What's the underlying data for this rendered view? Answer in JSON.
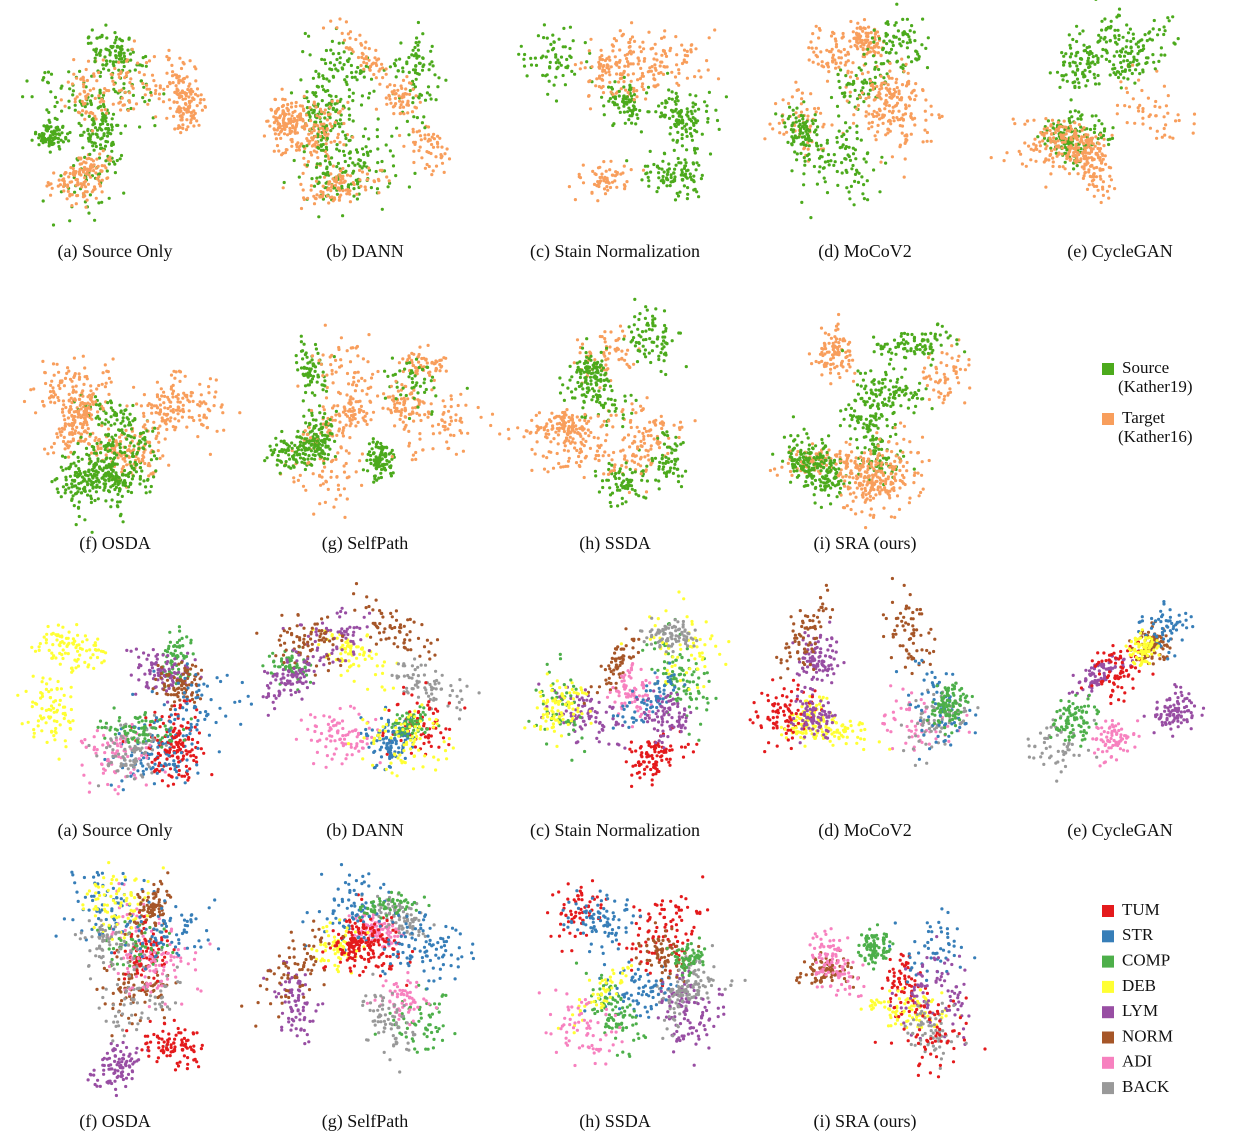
{
  "figures": [
    {
      "captions": [
        "(a) Source Only",
        "(b) DANN",
        "(c) Stain Normalization",
        "(d) MoCoV2",
        "(e) CycleGAN",
        "(f) OSDA",
        "(g) SelfPath",
        "(h) SSDA",
        "(i) SRA (ours)"
      ],
      "legend": [
        {
          "lines": [
            "Source",
            "(Kather19)"
          ],
          "color": "#4caa1c"
        },
        {
          "lines": [
            "Target",
            "(Kather16)"
          ],
          "color": "#f89e5c"
        }
      ]
    },
    {
      "captions": [
        "(a) Source Only",
        "(b) DANN",
        "(c) Stain Normalization",
        "(d) MoCoV2",
        "(e) CycleGAN",
        "(f) OSDA",
        "(g) SelfPath",
        "(h) SSDA",
        "(i) SRA (ours)"
      ],
      "legend": [
        {
          "lines": [
            "TUM"
          ],
          "color": "#e41a1c"
        },
        {
          "lines": [
            "STR"
          ],
          "color": "#377eb8"
        },
        {
          "lines": [
            "COMP"
          ],
          "color": "#4daf4a"
        },
        {
          "lines": [
            "DEB"
          ],
          "color": "#ffff33"
        },
        {
          "lines": [
            "LYM"
          ],
          "color": "#984ea3"
        },
        {
          "lines": [
            "NORM"
          ],
          "color": "#a65628"
        },
        {
          "lines": [
            "ADI"
          ],
          "color": "#f781bf"
        },
        {
          "lines": [
            "BACK"
          ],
          "color": "#999999"
        }
      ]
    }
  ]
}
